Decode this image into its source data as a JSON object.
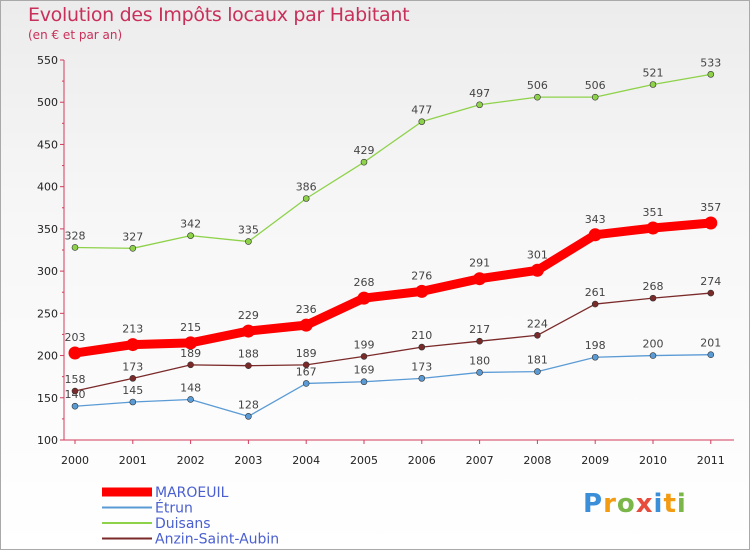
{
  "chart_data": {
    "type": "line",
    "title": "Evolution des Impôts locaux par Habitant",
    "subtitle": "(en € et par an)",
    "x": [
      "2000",
      "2001",
      "2002",
      "2003",
      "2004",
      "2005",
      "2006",
      "2007",
      "2008",
      "2009",
      "2010",
      "2011"
    ],
    "ylim": [
      100,
      550
    ],
    "yticks": [
      "100",
      "150",
      "200",
      "250",
      "300",
      "350",
      "400",
      "450",
      "500",
      "550"
    ],
    "grid": false,
    "legend_position": "bottom-left",
    "series": [
      {
        "name": "MAROEUIL",
        "color": "#ff0000",
        "values": [
          203,
          213,
          215,
          229,
          236,
          268,
          276,
          291,
          301,
          343,
          351,
          357
        ]
      },
      {
        "name": "Étrun",
        "color": "#5b9bd5",
        "values": [
          140,
          145,
          148,
          128,
          167,
          169,
          173,
          180,
          181,
          198,
          200,
          201
        ]
      },
      {
        "name": "Duisans",
        "color": "#8ed24a",
        "values": [
          328,
          327,
          342,
          335,
          386,
          429,
          477,
          497,
          506,
          506,
          521,
          533
        ]
      },
      {
        "name": "Anzin-Saint-Aubin",
        "color": "#7b2a2a",
        "values": [
          158,
          173,
          189,
          188,
          189,
          199,
          210,
          217,
          224,
          261,
          268,
          274
        ]
      }
    ]
  },
  "logo": {
    "letters": [
      "P",
      "r",
      "o",
      "x",
      "i",
      "t",
      "i"
    ],
    "colors": [
      "#3a8fd8",
      "#f39c12",
      "#7ab648",
      "#e74c3c",
      "#3a8fd8",
      "#f39c12",
      "#7ab648"
    ]
  }
}
